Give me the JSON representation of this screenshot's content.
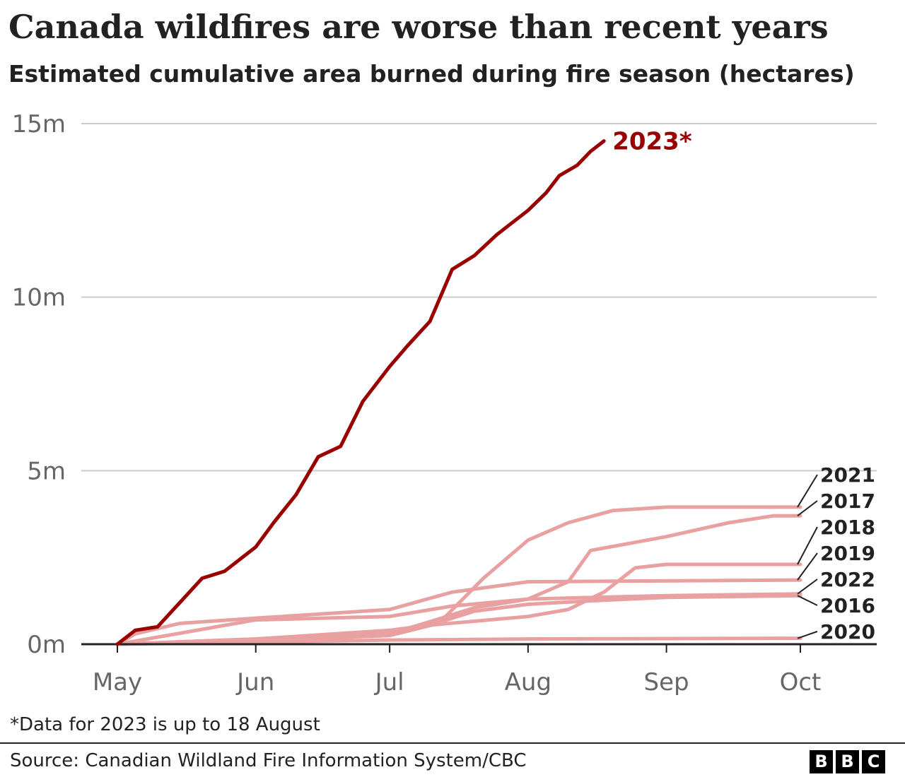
{
  "header": {
    "title": "Canada wildfires are worse than recent years",
    "subtitle": "Estimated cumulative area burned during fire season (hectares)"
  },
  "footer": {
    "footnote": "*Data for 2023 is up to 18 August",
    "source": "Source: Canadian Wildland Fire Information System/CBC",
    "logo_letters": [
      "B",
      "B",
      "C"
    ]
  },
  "colors": {
    "highlight": "#990000",
    "other_years": "#e8a0a0",
    "axis": "#222222",
    "grid": "#cccccc",
    "tick_text": "#666666",
    "label_text": "#222222"
  },
  "chart_data": {
    "type": "line",
    "title": "Canada wildfires are worse than recent years",
    "subtitle": "Estimated cumulative area burned during fire season (hectares)",
    "xlabel": "",
    "ylabel": "",
    "x_axis": {
      "type": "date",
      "range": [
        "2000-05-01",
        "2000-10-31"
      ],
      "ticks": [
        {
          "date": "2000-05-01",
          "label": "May"
        },
        {
          "date": "2000-06-01",
          "label": "Jun"
        },
        {
          "date": "2000-07-01",
          "label": "Jul"
        },
        {
          "date": "2000-08-01",
          "label": "Aug"
        },
        {
          "date": "2000-09-01",
          "label": "Sep"
        },
        {
          "date": "2000-10-01",
          "label": "Oct"
        }
      ]
    },
    "y_axis": {
      "range": [
        0,
        15000000
      ],
      "ticks": [
        {
          "value": 0,
          "label": "0m"
        },
        {
          "value": 5000000,
          "label": "5m"
        },
        {
          "value": 10000000,
          "label": "10m"
        },
        {
          "value": 15000000,
          "label": "15m"
        }
      ]
    },
    "grid": true,
    "end_labels": [
      "2021",
      "2017",
      "2018",
      "2019",
      "2022",
      "2016",
      "2020"
    ],
    "series": [
      {
        "name": "2016",
        "highlight": false,
        "points": [
          [
            "2000-05-01",
            0
          ],
          [
            "2000-06-01",
            150000
          ],
          [
            "2000-07-01",
            400000
          ],
          [
            "2000-07-10",
            550000
          ],
          [
            "2000-07-20",
            950000
          ],
          [
            "2000-08-01",
            1150000
          ],
          [
            "2000-08-15",
            1250000
          ],
          [
            "2000-09-01",
            1350000
          ],
          [
            "2000-10-01",
            1400000
          ]
        ]
      },
      {
        "name": "2017",
        "highlight": false,
        "points": [
          [
            "2000-05-01",
            0
          ],
          [
            "2000-06-01",
            100000
          ],
          [
            "2000-07-01",
            300000
          ],
          [
            "2000-07-10",
            650000
          ],
          [
            "2000-07-20",
            1050000
          ],
          [
            "2000-08-01",
            1300000
          ],
          [
            "2000-08-10",
            1800000
          ],
          [
            "2000-08-15",
            2700000
          ],
          [
            "2000-09-01",
            3100000
          ],
          [
            "2000-09-15",
            3500000
          ],
          [
            "2000-09-25",
            3700000
          ],
          [
            "2000-10-01",
            3700000
          ]
        ]
      },
      {
        "name": "2018",
        "highlight": false,
        "points": [
          [
            "2000-05-01",
            0
          ],
          [
            "2000-06-01",
            150000
          ],
          [
            "2000-07-01",
            350000
          ],
          [
            "2000-07-10",
            550000
          ],
          [
            "2000-08-01",
            800000
          ],
          [
            "2000-08-10",
            1000000
          ],
          [
            "2000-08-18",
            1500000
          ],
          [
            "2000-08-25",
            2200000
          ],
          [
            "2000-09-01",
            2300000
          ],
          [
            "2000-10-01",
            2300000
          ]
        ]
      },
      {
        "name": "2019",
        "highlight": false,
        "points": [
          [
            "2000-05-01",
            0
          ],
          [
            "2000-05-05",
            300000
          ],
          [
            "2000-05-15",
            600000
          ],
          [
            "2000-06-01",
            750000
          ],
          [
            "2000-07-01",
            1000000
          ],
          [
            "2000-07-15",
            1500000
          ],
          [
            "2000-08-01",
            1800000
          ],
          [
            "2000-10-01",
            1850000
          ]
        ]
      },
      {
        "name": "2020",
        "highlight": false,
        "points": [
          [
            "2000-05-01",
            0
          ],
          [
            "2000-06-01",
            60000
          ],
          [
            "2000-07-01",
            120000
          ],
          [
            "2000-08-01",
            150000
          ],
          [
            "2000-10-01",
            170000
          ]
        ]
      },
      {
        "name": "2021",
        "highlight": false,
        "points": [
          [
            "2000-05-01",
            0
          ],
          [
            "2000-06-01",
            100000
          ],
          [
            "2000-07-01",
            250000
          ],
          [
            "2000-07-12",
            600000
          ],
          [
            "2000-07-22",
            1900000
          ],
          [
            "2000-08-01",
            3000000
          ],
          [
            "2000-08-10",
            3500000
          ],
          [
            "2000-08-20",
            3850000
          ],
          [
            "2000-09-01",
            3950000
          ],
          [
            "2000-10-01",
            3950000
          ]
        ]
      },
      {
        "name": "2022",
        "highlight": false,
        "points": [
          [
            "2000-05-01",
            0
          ],
          [
            "2000-06-01",
            700000
          ],
          [
            "2000-07-01",
            800000
          ],
          [
            "2000-07-15",
            1100000
          ],
          [
            "2000-08-01",
            1300000
          ],
          [
            "2000-09-01",
            1400000
          ],
          [
            "2000-10-01",
            1450000
          ]
        ]
      },
      {
        "name": "2023*",
        "highlight": true,
        "points": [
          [
            "2000-05-01",
            0
          ],
          [
            "2000-05-05",
            400000
          ],
          [
            "2000-05-10",
            500000
          ],
          [
            "2000-05-15",
            1200000
          ],
          [
            "2000-05-20",
            1900000
          ],
          [
            "2000-05-25",
            2100000
          ],
          [
            "2000-06-01",
            2800000
          ],
          [
            "2000-06-05",
            3500000
          ],
          [
            "2000-06-10",
            4300000
          ],
          [
            "2000-06-15",
            5400000
          ],
          [
            "2000-06-20",
            5700000
          ],
          [
            "2000-06-25",
            7000000
          ],
          [
            "2000-07-01",
            8000000
          ],
          [
            "2000-07-05",
            8600000
          ],
          [
            "2000-07-10",
            9300000
          ],
          [
            "2000-07-15",
            10800000
          ],
          [
            "2000-07-20",
            11200000
          ],
          [
            "2000-07-25",
            11800000
          ],
          [
            "2000-08-01",
            12500000
          ],
          [
            "2000-08-05",
            13000000
          ],
          [
            "2000-08-08",
            13500000
          ],
          [
            "2000-08-12",
            13800000
          ],
          [
            "2000-08-15",
            14200000
          ],
          [
            "2000-08-18",
            14500000
          ]
        ]
      }
    ]
  }
}
